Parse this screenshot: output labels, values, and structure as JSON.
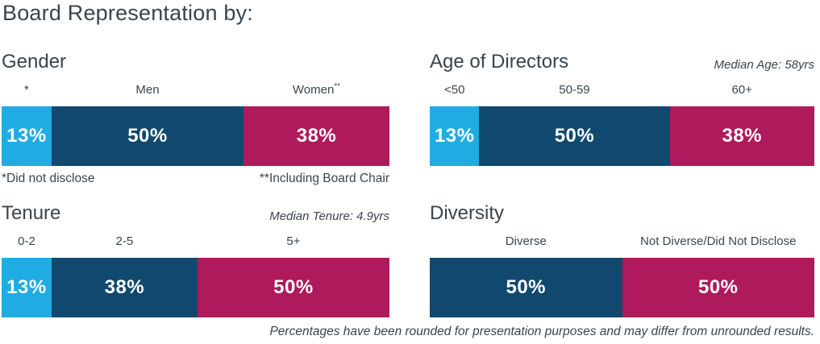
{
  "page_title": "Board Representation by:",
  "footer_note": "Percentages have been rounded for presentation purposes and may differ from unrounded results.",
  "colors": {
    "light_blue": "#20ABE2",
    "dark_blue": "#11496E",
    "magenta": "#AE1A5B",
    "text": "#3A454E",
    "value_text": "#FFFFFF"
  },
  "chart_data": [
    {
      "type": "bar",
      "title": "Gender",
      "categories": [
        "*",
        "Men",
        "Women**"
      ],
      "values": [
        13,
        50,
        38
      ],
      "value_labels": [
        "13%",
        "50%",
        "38%"
      ],
      "segment_colors": [
        "#20ABE2",
        "#11496E",
        "#AE1A5B"
      ],
      "footnotes": [
        "*Did not disclose",
        "**Including Board Chair"
      ],
      "layout": "stacked horizontal, single 100% bar, legend off, labels above segments"
    },
    {
      "type": "bar",
      "title": "Age of Directors",
      "note": "Median Age: 58yrs",
      "categories": [
        "<50",
        "50-59",
        "60+"
      ],
      "values": [
        13,
        50,
        38
      ],
      "value_labels": [
        "13%",
        "50%",
        "38%"
      ],
      "segment_colors": [
        "#20ABE2",
        "#11496E",
        "#AE1A5B"
      ],
      "layout": "stacked horizontal, single 100% bar, legend off, labels above segments"
    },
    {
      "type": "bar",
      "title": "Tenure",
      "note": "Median Tenure: 4.9yrs",
      "categories": [
        "0-2",
        "2-5",
        "5+"
      ],
      "values": [
        13,
        38,
        50
      ],
      "value_labels": [
        "13%",
        "38%",
        "50%"
      ],
      "segment_colors": [
        "#20ABE2",
        "#11496E",
        "#AE1A5B"
      ],
      "layout": "stacked horizontal, single 100% bar, legend off, labels above segments"
    },
    {
      "type": "bar",
      "title": "Diversity",
      "categories": [
        "Diverse",
        "Not Diverse/Did Not Disclose"
      ],
      "values": [
        50,
        50
      ],
      "value_labels": [
        "50%",
        "50%"
      ],
      "segment_colors": [
        "#11496E",
        "#AE1A5B"
      ],
      "layout": "stacked horizontal, single 100% bar, legend off, labels above segments"
    }
  ]
}
